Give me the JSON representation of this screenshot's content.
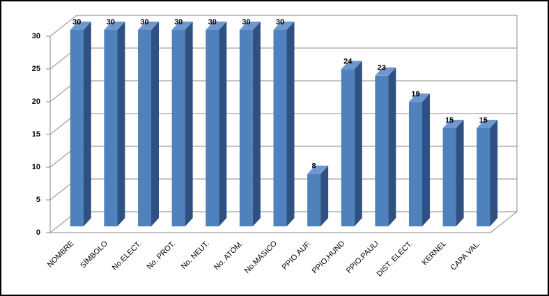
{
  "chart_data": {
    "type": "bar3d",
    "categories": [
      "NOMBRE",
      "SÍMBOLO",
      "No.ELECT.",
      "No. PROT.",
      "No. NEUT.",
      "No. ATÓM.",
      "No.MÁSICO",
      "PPIO.AUF.",
      "PPIO.HUND",
      "PPIO.PAULI",
      "DIST. ELECT.",
      "KERNEL",
      "CAPA VAL."
    ],
    "values": [
      30,
      30,
      30,
      30,
      30,
      30,
      30,
      8,
      24,
      23,
      19,
      15,
      15
    ],
    "color": "#4f81bd",
    "ylim": [
      0,
      30
    ],
    "yticks": [
      0,
      5,
      10,
      15,
      20,
      25,
      30
    ],
    "grid": true
  }
}
